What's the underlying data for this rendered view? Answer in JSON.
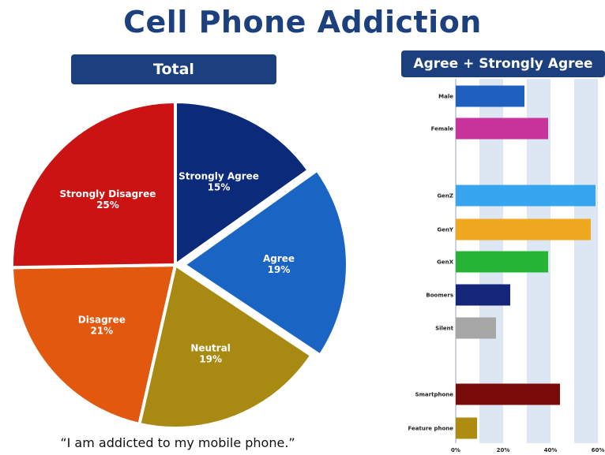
{
  "title": "Cell Phone Addiction",
  "quote": "“I am addicted to my mobile phone.”",
  "chart_data": [
    {
      "type": "pie",
      "title": "Total",
      "slices": [
        {
          "label": "Strongly Agree",
          "value": 15,
          "display": "15%",
          "color": "#0b2a7a"
        },
        {
          "label": "Agree",
          "value": 19,
          "display": "19%",
          "color": "#1a64c4"
        },
        {
          "label": "Neutral",
          "value": 19,
          "display": "19%",
          "color": "#a88a12"
        },
        {
          "label": "Disagree",
          "value": 21,
          "display": "21%",
          "color": "#e2580f"
        },
        {
          "label": "Strongly Disagree",
          "value": 25,
          "display": "25%",
          "color": "#cc1313"
        }
      ]
    },
    {
      "type": "bar",
      "orientation": "horizontal",
      "title": "Agree + Strongly Agree",
      "xlim": [
        0,
        60
      ],
      "x_ticks": [
        "0%",
        "20%",
        "40%",
        "60%"
      ],
      "bars": [
        {
          "label": "Male",
          "value": 29,
          "color": "#1f5fc0"
        },
        {
          "label": "Female",
          "value": 39,
          "color": "#c8349c"
        },
        {
          "label": "GenZ",
          "value": 59,
          "color": "#37a6ef"
        },
        {
          "label": "GenY",
          "value": 57,
          "color": "#f0a820"
        },
        {
          "label": "GenX",
          "value": 39,
          "color": "#26b436"
        },
        {
          "label": "Boomers",
          "value": 23,
          "color": "#14257a"
        },
        {
          "label": "Silent",
          "value": 17,
          "color": "#a6a6a6"
        },
        {
          "label": "Smartphone",
          "value": 44,
          "color": "#7a0b0b"
        },
        {
          "label": "Feature phone",
          "value": 9,
          "color": "#ad8c0f"
        }
      ]
    }
  ]
}
